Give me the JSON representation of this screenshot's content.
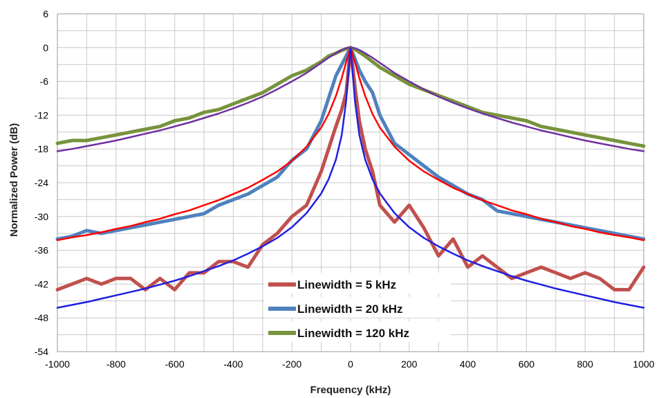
{
  "chart_data": {
    "type": "line",
    "xlabel": "Frequency (kHz)",
    "ylabel": "Normalized Power (dB)",
    "xlim": [
      -1000,
      1000
    ],
    "ylim": [
      -54,
      6
    ],
    "x_ticks": [
      -1000,
      -800,
      -600,
      -400,
      -200,
      0,
      200,
      400,
      600,
      800,
      1000
    ],
    "y_ticks": [
      6,
      0,
      -6,
      -12,
      -18,
      -24,
      -30,
      -36,
      -42,
      -48,
      -54
    ],
    "grid": true,
    "legend_position": "bottom-center",
    "series": [
      {
        "name": "Linewidth = 5 kHz",
        "color": "#c0504d",
        "legend": true,
        "x": [
          -1000,
          -950,
          -900,
          -850,
          -800,
          -750,
          -700,
          -650,
          -600,
          -550,
          -500,
          -450,
          -400,
          -350,
          -300,
          -250,
          -200,
          -150,
          -100,
          -75,
          -50,
          -30,
          -15,
          0,
          15,
          30,
          50,
          75,
          100,
          150,
          200,
          250,
          300,
          350,
          400,
          450,
          500,
          550,
          600,
          650,
          700,
          750,
          800,
          850,
          900,
          950,
          1000
        ],
        "y": [
          -43,
          -42,
          -41,
          -42,
          -41,
          -41,
          -43,
          -41,
          -43,
          -40,
          -40,
          -38,
          -38,
          -39,
          -35,
          -33,
          -30,
          -28,
          -22,
          -18,
          -14,
          -11,
          -8,
          0,
          -7,
          -13,
          -18,
          -22,
          -28,
          -31,
          -28,
          -32,
          -37,
          -34,
          -39,
          -37,
          -39,
          -41,
          -40,
          -39,
          -40,
          -41,
          -40,
          -41,
          -43,
          -43,
          -39
        ]
      },
      {
        "name": "Linewidth = 20 kHz",
        "color": "#4f81bd",
        "legend": true,
        "x": [
          -1000,
          -950,
          -900,
          -850,
          -800,
          -750,
          -700,
          -650,
          -600,
          -550,
          -500,
          -450,
          -400,
          -350,
          -300,
          -250,
          -200,
          -150,
          -100,
          -75,
          -50,
          -30,
          -15,
          0,
          15,
          30,
          50,
          75,
          100,
          150,
          200,
          250,
          300,
          350,
          400,
          450,
          500,
          550,
          600,
          650,
          700,
          750,
          800,
          850,
          900,
          950,
          1000
        ],
        "y": [
          -34,
          -33.5,
          -32.5,
          -33,
          -32.5,
          -32,
          -31.5,
          -31,
          -30.5,
          -30,
          -29.5,
          -28,
          -27,
          -26,
          -24.5,
          -23,
          -20,
          -18,
          -13,
          -9,
          -5,
          -3,
          -1.5,
          0,
          -2,
          -4,
          -6,
          -8,
          -12,
          -17,
          -19,
          -21,
          -23,
          -24.5,
          -26,
          -27,
          -29,
          -29.5,
          -30,
          -30.5,
          -31,
          -31.5,
          -32,
          -32.5,
          -33,
          -33.5,
          -34
        ]
      },
      {
        "name": "Linewidth = 120 kHz",
        "color": "#77933c",
        "legend": true,
        "x": [
          -1000,
          -950,
          -900,
          -850,
          -800,
          -750,
          -700,
          -650,
          -600,
          -550,
          -500,
          -450,
          -400,
          -350,
          -300,
          -250,
          -200,
          -150,
          -100,
          -75,
          -50,
          -30,
          -15,
          0,
          15,
          30,
          50,
          75,
          100,
          150,
          200,
          250,
          300,
          350,
          400,
          450,
          500,
          550,
          600,
          650,
          700,
          750,
          800,
          850,
          900,
          950,
          1000
        ],
        "y": [
          -17,
          -16.5,
          -16.5,
          -16,
          -15.5,
          -15,
          -14.5,
          -14,
          -13,
          -12.5,
          -11.5,
          -11,
          -10,
          -9,
          -8,
          -6.5,
          -5,
          -4,
          -2.5,
          -1.5,
          -1,
          -0.5,
          -0.2,
          0,
          -0.3,
          -0.8,
          -1.5,
          -2.5,
          -3.5,
          -5,
          -6.5,
          -7.5,
          -8.5,
          -9.5,
          -10.5,
          -11.5,
          -12,
          -12.5,
          -13,
          -14,
          -14.5,
          -15,
          -15.5,
          -16,
          -16.5,
          -17,
          -17.5
        ]
      },
      {
        "name": "",
        "color": "#ff0000",
        "legend": false,
        "x": [
          -1000,
          -950,
          -900,
          -850,
          -800,
          -750,
          -700,
          -650,
          -600,
          -550,
          -500,
          -450,
          -400,
          -350,
          -300,
          -250,
          -200,
          -150,
          -100,
          -75,
          -50,
          -30,
          -15,
          0,
          15,
          30,
          50,
          75,
          100,
          150,
          200,
          250,
          300,
          350,
          400,
          450,
          500,
          550,
          600,
          650,
          700,
          750,
          800,
          850,
          900,
          950,
          1000
        ],
        "y": [
          -34.2,
          -33.7,
          -33.3,
          -32.8,
          -32.2,
          -31.7,
          -31.0,
          -30.4,
          -29.6,
          -28.9,
          -28.0,
          -27.1,
          -26.0,
          -24.9,
          -23.5,
          -22.0,
          -20.1,
          -17.6,
          -14.2,
          -11.8,
          -8.6,
          -5.4,
          -2.6,
          0,
          -2.6,
          -5.4,
          -8.6,
          -11.8,
          -14.2,
          -17.6,
          -20.1,
          -22.0,
          -23.5,
          -24.9,
          -26.0,
          -27.1,
          -28.0,
          -28.9,
          -29.6,
          -30.4,
          -31.0,
          -31.7,
          -32.2,
          -32.8,
          -33.3,
          -33.7,
          -34.2
        ]
      },
      {
        "name": "",
        "color": "#1f1fe0",
        "legend": false,
        "x": [
          -1000,
          -950,
          -900,
          -850,
          -800,
          -750,
          -700,
          -650,
          -600,
          -550,
          -500,
          -450,
          -400,
          -350,
          -300,
          -250,
          -200,
          -150,
          -100,
          -75,
          -50,
          -30,
          -15,
          0,
          15,
          30,
          50,
          75,
          100,
          150,
          200,
          250,
          300,
          350,
          400,
          450,
          500,
          550,
          600,
          650,
          700,
          750,
          800,
          850,
          900,
          950,
          1000
        ],
        "y": [
          -46.2,
          -45.7,
          -45.2,
          -44.6,
          -44.0,
          -43.4,
          -42.8,
          -42.1,
          -41.4,
          -40.6,
          -39.7,
          -38.8,
          -37.8,
          -36.6,
          -35.3,
          -33.8,
          -31.9,
          -29.4,
          -25.9,
          -23.4,
          -19.9,
          -15.5,
          -9.5,
          0,
          -9.5,
          -15.5,
          -19.9,
          -23.4,
          -25.9,
          -29.4,
          -31.9,
          -33.8,
          -35.3,
          -36.6,
          -37.8,
          -38.8,
          -39.7,
          -40.6,
          -41.4,
          -42.1,
          -42.8,
          -43.4,
          -44.0,
          -44.6,
          -45.2,
          -45.7,
          -46.2
        ]
      },
      {
        "name": "",
        "color": "#7030a0",
        "legend": false,
        "x": [
          -1000,
          -950,
          -900,
          -850,
          -800,
          -750,
          -700,
          -650,
          -600,
          -550,
          -500,
          -450,
          -400,
          -350,
          -300,
          -250,
          -200,
          -150,
          -100,
          -75,
          -50,
          -30,
          -15,
          0,
          15,
          30,
          50,
          75,
          100,
          150,
          200,
          250,
          300,
          350,
          400,
          450,
          500,
          550,
          600,
          650,
          700,
          750,
          800,
          850,
          900,
          950,
          1000
        ],
        "y": [
          -18.4,
          -18.0,
          -17.5,
          -17.0,
          -16.5,
          -15.9,
          -15.3,
          -14.7,
          -14.0,
          -13.3,
          -12.5,
          -11.7,
          -10.8,
          -9.8,
          -8.7,
          -7.4,
          -6.0,
          -4.5,
          -2.7,
          -1.8,
          -1.0,
          -0.4,
          -0.1,
          0,
          -0.1,
          -0.4,
          -1.0,
          -1.8,
          -2.7,
          -4.5,
          -6.0,
          -7.4,
          -8.7,
          -9.8,
          -10.8,
          -11.7,
          -12.5,
          -13.3,
          -14.0,
          -14.7,
          -15.3,
          -15.9,
          -16.5,
          -17.0,
          -17.5,
          -18.0,
          -18.4
        ]
      }
    ]
  }
}
